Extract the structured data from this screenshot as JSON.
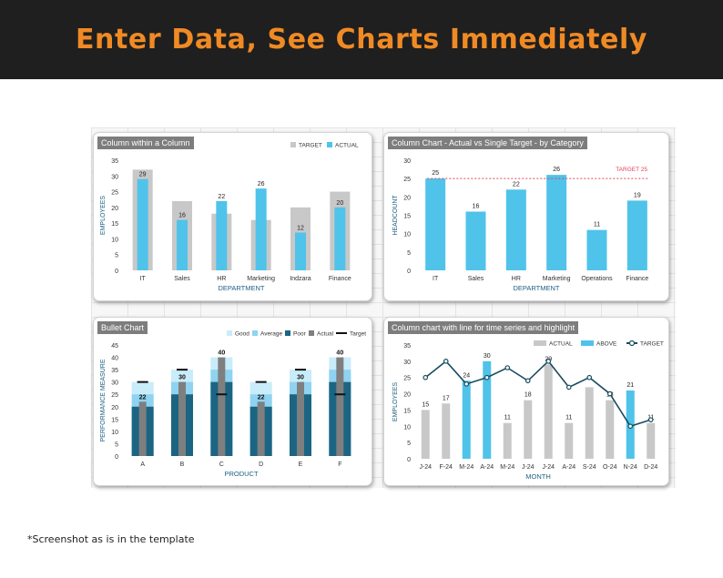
{
  "banner": {
    "title": "Enter Data, See Charts Immediately"
  },
  "footnote": "*Screenshot as is in the template",
  "colors": {
    "target_gray": "#c8c8c8",
    "actual_blue": "#4fc3ea",
    "good": "#c9ecfa",
    "average": "#8fd3f0",
    "poor": "#1b6583",
    "actual_bar": "#7f7f7f",
    "target_marker": "#111111",
    "line": "#1a4c5e",
    "target_line": "#e2435d",
    "axis_text": "#333333",
    "axis_title": "#1b5f80"
  },
  "chart_data": [
    {
      "title": "Column within a Column",
      "type": "bar",
      "categories": [
        "IT",
        "Sales",
        "HR",
        "Marketing",
        "Indzara",
        "Finance"
      ],
      "series": [
        {
          "name": "TARGET",
          "values": [
            32,
            22,
            18,
            16,
            20,
            25
          ]
        },
        {
          "name": "ACTUAL",
          "values": [
            29,
            16,
            22,
            26,
            12,
            20
          ]
        }
      ],
      "data_labels": [
        "29",
        "16",
        "22",
        "26",
        "12",
        "20"
      ],
      "xlabel": "DEPARTMENT",
      "ylabel": "EMPLOYEES",
      "ylim": [
        0,
        35
      ],
      "yticks": [
        "0",
        "5",
        "10",
        "15",
        "20",
        "25",
        "30",
        "35"
      ],
      "legend": "top-right",
      "grid": false
    },
    {
      "title": "Column Chart  - Actual vs Single Target - by Category",
      "type": "bar",
      "categories": [
        "IT",
        "Sales",
        "HR",
        "Marketing",
        "Operations",
        "Finance"
      ],
      "series": [
        {
          "values": [
            25,
            16,
            22,
            26,
            11,
            19
          ]
        }
      ],
      "data_labels": [
        "25",
        "16",
        "22",
        "26",
        "11",
        "19"
      ],
      "target": 25,
      "target_label": "TARGET 25",
      "xlabel": "DEPARTMENT",
      "ylabel": "HEADCOUNT",
      "ylim": [
        0,
        30
      ],
      "yticks": [
        "0",
        "5",
        "10",
        "15",
        "20",
        "25",
        "30"
      ],
      "grid": false
    },
    {
      "title": "Bullet Chart",
      "type": "bar",
      "categories": [
        "A",
        "B",
        "C",
        "D",
        "E",
        "F"
      ],
      "series": [
        {
          "name": "Good",
          "values": [
            30,
            35,
            40,
            30,
            35,
            40
          ]
        },
        {
          "name": "Average",
          "values": [
            25,
            30,
            35,
            25,
            30,
            35
          ]
        },
        {
          "name": "Poor",
          "values": [
            20,
            25,
            30,
            20,
            25,
            30
          ]
        },
        {
          "name": "Actual",
          "values": [
            22,
            30,
            40,
            22,
            30,
            40
          ]
        },
        {
          "name": "Target",
          "values": [
            30,
            35,
            25,
            30,
            35,
            25
          ]
        }
      ],
      "data_labels": [
        "22",
        "30",
        "40",
        "22",
        "30",
        "40"
      ],
      "xlabel": "PRODUCT",
      "ylabel": "PERFORMANCE MEASURE",
      "ylim": [
        0,
        45
      ],
      "yticks": [
        "0",
        "5",
        "10",
        "15",
        "20",
        "25",
        "30",
        "35",
        "40",
        "45"
      ],
      "legend": "top-right",
      "grid": false
    },
    {
      "title": "Column chart with line for time series and highlight",
      "type": "bar",
      "categories": [
        "J-24",
        "F-24",
        "M-24",
        "A-24",
        "M-24",
        "J-24",
        "J-24",
        "A-24",
        "S-24",
        "O-24",
        "N-24",
        "D-24"
      ],
      "series": [
        {
          "name": "ACTUAL",
          "values": [
            15,
            17,
            24,
            30,
            11,
            18,
            29,
            11,
            22,
            18,
            21,
            11
          ]
        },
        {
          "name": "ABOVE",
          "highlighted": [
            false,
            false,
            true,
            true,
            false,
            false,
            false,
            false,
            false,
            false,
            true,
            false
          ]
        },
        {
          "name": "TARGET",
          "values": [
            25,
            30,
            23,
            25,
            28,
            24,
            30,
            22,
            25,
            20,
            10,
            12
          ]
        }
      ],
      "data_labels": [
        "15",
        "17",
        "24",
        "30",
        "11",
        "18",
        "29",
        "11",
        "",
        "18",
        "21",
        "11"
      ],
      "xlabel": "MONTH",
      "ylabel": "EMPLOYEES",
      "ylim": [
        0,
        35
      ],
      "yticks": [
        "0",
        "5",
        "10",
        "15",
        "20",
        "25",
        "30",
        "35"
      ],
      "legend": "top-right",
      "grid": false
    }
  ]
}
